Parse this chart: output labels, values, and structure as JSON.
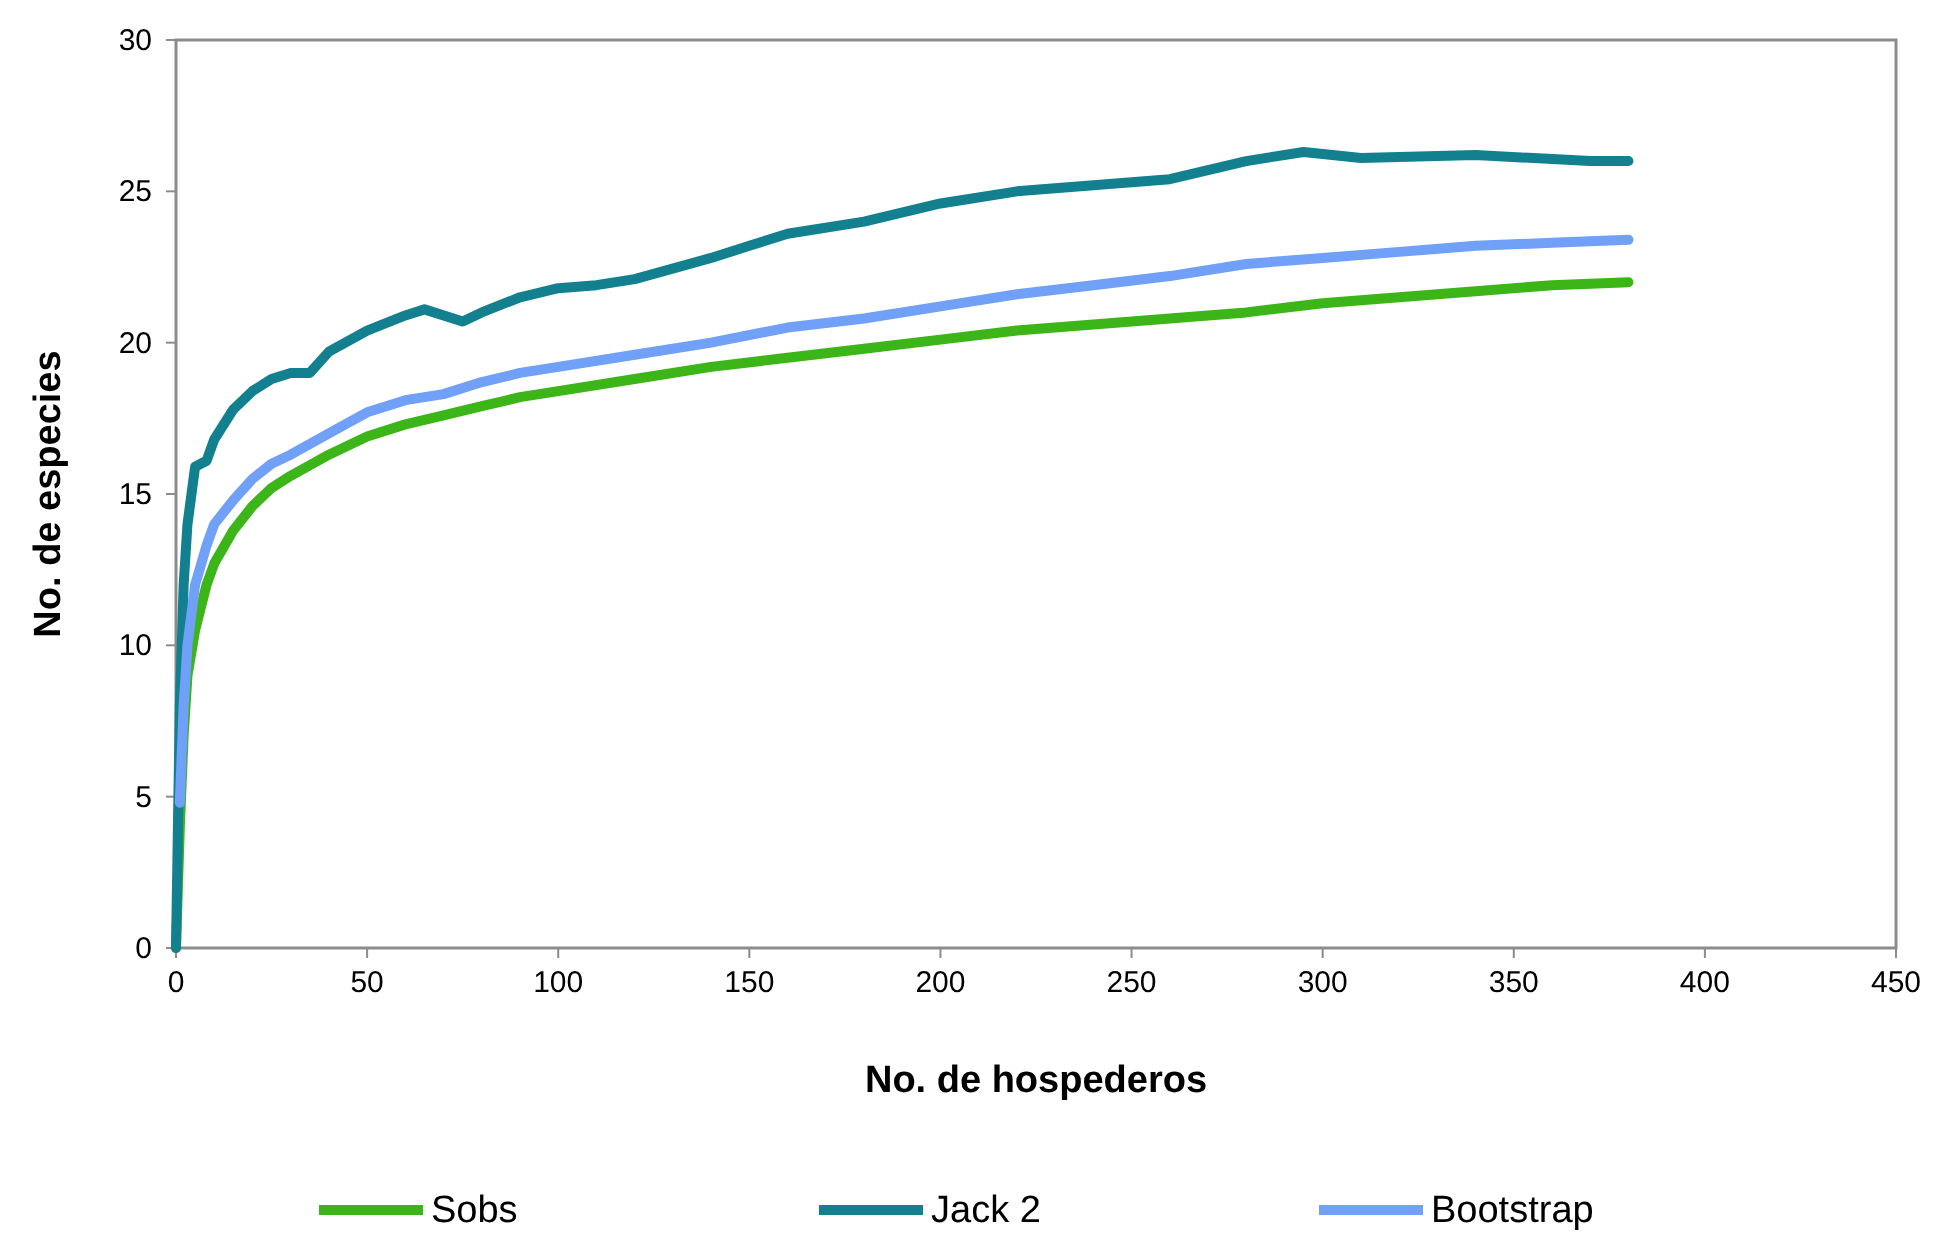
{
  "chart_data": {
    "type": "line",
    "xlabel": "No. de hospederos",
    "ylabel": "No. de especies",
    "xlim": [
      0,
      450
    ],
    "ylim": [
      0,
      30
    ],
    "xticks": [
      0,
      50,
      100,
      150,
      200,
      250,
      300,
      350,
      400,
      450
    ],
    "yticks": [
      0,
      5,
      10,
      15,
      20,
      25,
      30
    ],
    "grid": false,
    "legend": "bottom",
    "marker": "none",
    "line_style": "solid",
    "series": [
      {
        "name": "Sobs",
        "color": "#3cb518",
        "x": [
          0,
          1,
          2,
          3,
          5,
          8,
          10,
          15,
          20,
          25,
          30,
          40,
          50,
          60,
          70,
          80,
          90,
          100,
          120,
          140,
          160,
          180,
          200,
          220,
          240,
          260,
          280,
          300,
          320,
          340,
          360,
          380
        ],
        "values": [
          0,
          4,
          7,
          9,
          10.5,
          12,
          12.7,
          13.8,
          14.6,
          15.2,
          15.6,
          16.3,
          16.9,
          17.3,
          17.6,
          17.9,
          18.2,
          18.4,
          18.8,
          19.2,
          19.5,
          19.8,
          20.1,
          20.4,
          20.6,
          20.8,
          21,
          21.3,
          21.5,
          21.7,
          21.9,
          22
        ]
      },
      {
        "name": "Jack 2",
        "color": "#13808f",
        "x": [
          0,
          1,
          2,
          3,
          5,
          8,
          10,
          15,
          20,
          25,
          30,
          35,
          40,
          50,
          60,
          65,
          75,
          80,
          90,
          100,
          110,
          120,
          140,
          150,
          160,
          180,
          200,
          220,
          240,
          260,
          280,
          295,
          310,
          340,
          370,
          380
        ],
        "values": [
          0,
          8,
          12,
          14,
          15.9,
          16.1,
          16.8,
          17.8,
          18.4,
          18.8,
          19,
          19,
          19.7,
          20.4,
          20.9,
          21.1,
          20.7,
          21,
          21.5,
          21.8,
          21.9,
          22.1,
          22.8,
          23.2,
          23.6,
          24,
          24.6,
          25,
          25.2,
          25.4,
          26,
          26.3,
          26.1,
          26.2,
          26,
          26
        ]
      },
      {
        "name": "Bootstrap",
        "color": "#70a0f8",
        "x": [
          1,
          2,
          3,
          5,
          8,
          10,
          15,
          20,
          25,
          30,
          40,
          50,
          60,
          70,
          80,
          90,
          100,
          120,
          140,
          160,
          180,
          200,
          220,
          240,
          260,
          280,
          300,
          320,
          340,
          360,
          380
        ],
        "values": [
          4.8,
          8,
          10,
          12,
          13.3,
          14,
          14.8,
          15.5,
          16,
          16.3,
          17,
          17.7,
          18.1,
          18.3,
          18.7,
          19,
          19.2,
          19.6,
          20,
          20.5,
          20.8,
          21.2,
          21.6,
          21.9,
          22.2,
          22.6,
          22.8,
          23,
          23.2,
          23.3,
          23.4
        ]
      }
    ]
  }
}
